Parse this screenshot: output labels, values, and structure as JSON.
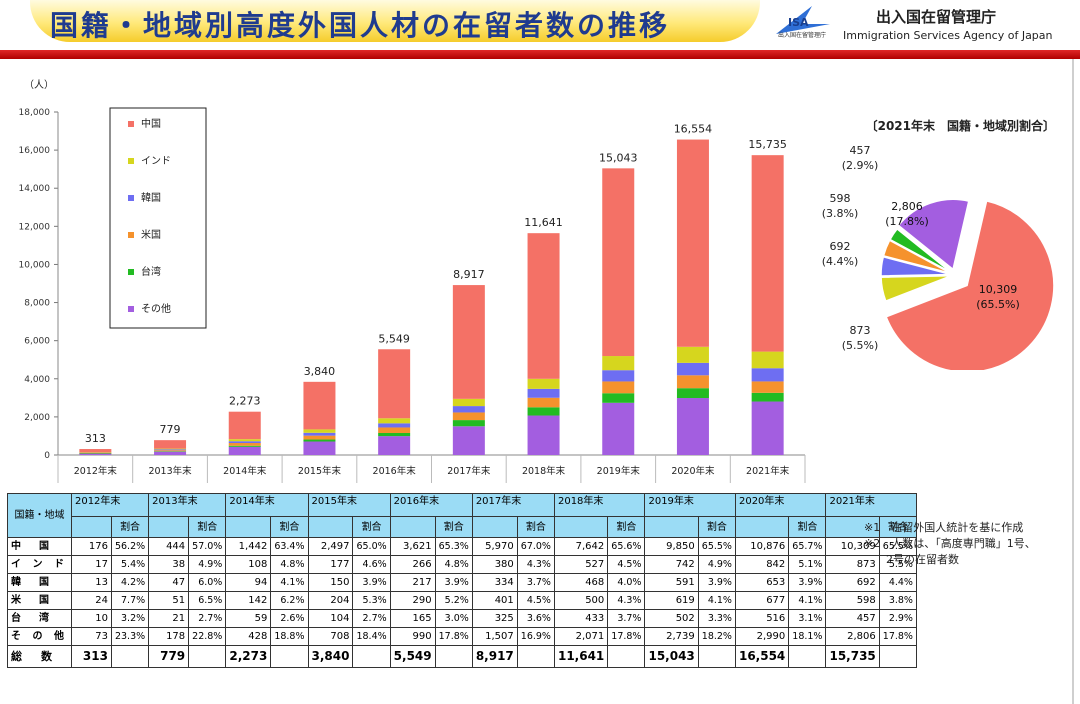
{
  "header": {
    "title": "国籍・地域別高度外国人材の在留者数の推移",
    "logo_text": "ISA",
    "logo_small": "出入国在留管理庁",
    "agency_jp": "出入国在留管理庁",
    "agency_en": "Immigration Services Agency of Japan"
  },
  "colors": {
    "中国": "#f47166",
    "インド": "#d6d61e",
    "韓国": "#6e6ef2",
    "米国": "#f5922d",
    "台湾": "#22bb22",
    "その他": "#a35ee0",
    "title": "#1f3b8f",
    "table_header": "#9bdcf5",
    "banner_red": "#d01818"
  },
  "chart_data": [
    {
      "type": "bar",
      "stacked": true,
      "ylabel": "（人）",
      "ylim": [
        0,
        18000
      ],
      "yticks": [
        "0",
        "2,000",
        "4,000",
        "6,000",
        "8,000",
        "10,000",
        "12,000",
        "14,000",
        "16,000",
        "18,000"
      ],
      "categories": [
        "2012年末",
        "2013年末",
        "2014年末",
        "2015年末",
        "2016年末",
        "2017年末",
        "2018年末",
        "2019年末",
        "2020年末",
        "2021年末"
      ],
      "totals_labels": [
        "313",
        "779",
        "2,273",
        "3,840",
        "5,549",
        "8,917",
        "11,641",
        "15,043",
        "16,554",
        "15,735"
      ],
      "totals": [
        313,
        779,
        2273,
        3840,
        5549,
        8917,
        11641,
        15043,
        16554,
        15735
      ],
      "legend": [
        "中国",
        "インド",
        "韓国",
        "米国",
        "台湾",
        "その他"
      ],
      "series": [
        {
          "name": "その他",
          "values": [
            73,
            178,
            428,
            708,
            990,
            1507,
            2071,
            2739,
            2990,
            2806
          ]
        },
        {
          "name": "台湾",
          "values": [
            10,
            21,
            59,
            104,
            165,
            325,
            433,
            502,
            516,
            457
          ]
        },
        {
          "name": "米国",
          "values": [
            24,
            51,
            142,
            204,
            290,
            401,
            500,
            619,
            677,
            598
          ]
        },
        {
          "name": "韓国",
          "values": [
            13,
            47,
            94,
            150,
            217,
            334,
            468,
            591,
            653,
            692
          ]
        },
        {
          "name": "インド",
          "values": [
            17,
            38,
            108,
            177,
            266,
            380,
            527,
            742,
            842,
            873
          ]
        },
        {
          "name": "中国",
          "values": [
            176,
            444,
            1442,
            2497,
            3621,
            5970,
            7642,
            9850,
            10876,
            10309
          ]
        }
      ]
    },
    {
      "type": "pie",
      "title": "〔2021年末　国籍・地域別割合〕",
      "slices": [
        {
          "name": "中国",
          "value": 10309,
          "label": "10,309",
          "pct": "(65.5%)"
        },
        {
          "name": "インド",
          "value": 873,
          "label": "873",
          "pct": "(5.5%)"
        },
        {
          "name": "韓国",
          "value": 692,
          "label": "692",
          "pct": "(4.4%)"
        },
        {
          "name": "米国",
          "value": 598,
          "label": "598",
          "pct": "(3.8%)"
        },
        {
          "name": "台湾",
          "value": 457,
          "label": "457",
          "pct": "(2.9%)"
        },
        {
          "name": "その他",
          "value": 2806,
          "label": "2,806",
          "pct": "(17.8%)"
        }
      ]
    }
  ],
  "table": {
    "corner": "国籍・地域",
    "share_label": "割合",
    "years": [
      "2012年末",
      "2013年末",
      "2014年末",
      "2015年末",
      "2016年末",
      "2017年末",
      "2018年末",
      "2019年末",
      "2020年末",
      "2021年末"
    ],
    "rows": [
      {
        "label": "中　国",
        "cells": [
          "176",
          "56.2%",
          "444",
          "57.0%",
          "1,442",
          "63.4%",
          "2,497",
          "65.0%",
          "3,621",
          "65.3%",
          "5,970",
          "67.0%",
          "7,642",
          "65.6%",
          "9,850",
          "65.5%",
          "10,876",
          "65.7%",
          "10,309",
          "65.5%"
        ]
      },
      {
        "label": "イ ン ド",
        "cells": [
          "17",
          "5.4%",
          "38",
          "4.9%",
          "108",
          "4.8%",
          "177",
          "4.6%",
          "266",
          "4.8%",
          "380",
          "4.3%",
          "527",
          "4.5%",
          "742",
          "4.9%",
          "842",
          "5.1%",
          "873",
          "5.5%"
        ]
      },
      {
        "label": "韓　国",
        "cells": [
          "13",
          "4.2%",
          "47",
          "6.0%",
          "94",
          "4.1%",
          "150",
          "3.9%",
          "217",
          "3.9%",
          "334",
          "3.7%",
          "468",
          "4.0%",
          "591",
          "3.9%",
          "653",
          "3.9%",
          "692",
          "4.4%"
        ]
      },
      {
        "label": "米　国",
        "cells": [
          "24",
          "7.7%",
          "51",
          "6.5%",
          "142",
          "6.2%",
          "204",
          "5.3%",
          "290",
          "5.2%",
          "401",
          "4.5%",
          "500",
          "4.3%",
          "619",
          "4.1%",
          "677",
          "4.1%",
          "598",
          "3.8%"
        ]
      },
      {
        "label": "台　湾",
        "cells": [
          "10",
          "3.2%",
          "21",
          "2.7%",
          "59",
          "2.6%",
          "104",
          "2.7%",
          "165",
          "3.0%",
          "325",
          "3.6%",
          "433",
          "3.7%",
          "502",
          "3.3%",
          "516",
          "3.1%",
          "457",
          "2.9%"
        ]
      },
      {
        "label": "そ の 他",
        "cells": [
          "73",
          "23.3%",
          "178",
          "22.8%",
          "428",
          "18.8%",
          "708",
          "18.4%",
          "990",
          "17.8%",
          "1,507",
          "16.9%",
          "2,071",
          "17.8%",
          "2,739",
          "18.2%",
          "2,990",
          "18.1%",
          "2,806",
          "17.8%"
        ]
      },
      {
        "label": "総　数",
        "cells": [
          "313",
          "",
          "779",
          "",
          "2,273",
          "",
          "3,840",
          "",
          "5,549",
          "",
          "8,917",
          "",
          "11,641",
          "",
          "15,043",
          "",
          "16,554",
          "",
          "15,735",
          ""
        ]
      }
    ]
  },
  "notes": [
    "※1　在留外国人統計を基に作成",
    "※2　人数は、「高度専門職」1号、",
    "　　2号の在留者数"
  ]
}
